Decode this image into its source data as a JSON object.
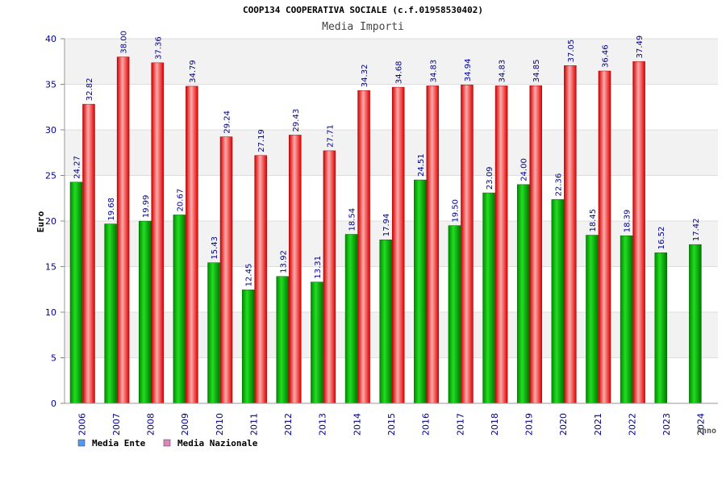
{
  "chart_data": {
    "type": "bar",
    "title": "COOP134 COOPERATIVA SOCIALE (c.f.01958530402)",
    "subtitle": "Media Importi",
    "ylabel": "Euro",
    "xlabel": "Anno",
    "ylim": [
      0,
      40
    ],
    "yticks": [
      0,
      5,
      10,
      15,
      20,
      25,
      30,
      35,
      40
    ],
    "grid": true,
    "legend_position": "bottom-left",
    "categories": [
      "2006",
      "2007",
      "2008",
      "2009",
      "2010",
      "2011",
      "2012",
      "2013",
      "2014",
      "2015",
      "2016",
      "2017",
      "2018",
      "2019",
      "2020",
      "2021",
      "2022",
      "2023",
      "2024"
    ],
    "series": [
      {
        "name": "Media Ente",
        "color": "#00b000",
        "legend_color": "#5599ee",
        "values": [
          24.27,
          19.68,
          19.99,
          20.67,
          15.43,
          12.45,
          13.92,
          13.31,
          18.54,
          17.94,
          24.51,
          19.5,
          23.09,
          24.0,
          22.36,
          18.45,
          18.39,
          16.52,
          17.42
        ],
        "labels": [
          "24.27",
          "19.68",
          "19.99",
          "20.67",
          "15.43",
          "12.45",
          "13.92",
          "13.31",
          "18.54",
          "17.94",
          "24.51",
          "19.50",
          "23.09",
          "24.00",
          "22.36",
          "18.45",
          "18.39",
          "16.52",
          "17.42"
        ]
      },
      {
        "name": "Media Nazionale",
        "color": "#ee1111",
        "legend_color": "#dd88bb",
        "values": [
          32.82,
          38.0,
          37.36,
          34.79,
          29.24,
          27.19,
          29.43,
          27.71,
          34.32,
          34.68,
          34.83,
          34.94,
          34.83,
          34.85,
          37.05,
          36.46,
          37.49,
          null,
          null
        ],
        "labels": [
          "32.82",
          "38.00",
          "37.36",
          "34.79",
          "29.24",
          "27.19",
          "29.43",
          "27.71",
          "34.32",
          "34.68",
          "34.83",
          "34.94",
          "34.83",
          "34.85",
          "37.05",
          "36.46",
          "37.49",
          "",
          ""
        ]
      }
    ]
  }
}
